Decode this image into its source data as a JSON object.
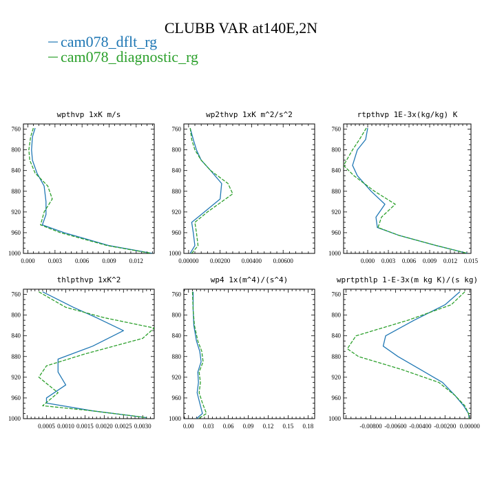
{
  "figure": {
    "title": "CLUBB VAR at140E,2N",
    "legend": [
      {
        "label": "cam078_dflt_rg",
        "color": "#1f77b4",
        "dash": "solid"
      },
      {
        "label": "cam078_diagnostic_rg",
        "color": "#2ca02c",
        "dash": "dashed"
      }
    ]
  },
  "chart_data": [
    {
      "type": "line",
      "title": "wpthvp  1xK m/s",
      "xlim": [
        -0.0005,
        0.014
      ],
      "ylim": [
        1000,
        750
      ],
      "yticks": [
        760,
        800,
        840,
        880,
        920,
        960,
        1000
      ],
      "xticks": [
        0.0,
        0.003,
        0.006,
        0.009,
        0.012
      ],
      "xticklabels": [
        "0.000",
        "0.003",
        "0.006",
        "0.009",
        "0.012"
      ],
      "ylabel": "",
      "series": [
        {
          "name": "cam078_dflt_rg",
          "x": [
            0.0008,
            0.0005,
            0.0004,
            0.0005,
            0.001,
            0.0018,
            0.002,
            0.002,
            0.0016,
            0.004,
            0.009,
            0.0138
          ],
          "y": [
            758,
            775,
            800,
            820,
            845,
            870,
            900,
            925,
            945,
            960,
            985,
            1000
          ]
        },
        {
          "name": "cam078_diagnostic_rg",
          "x": [
            0.0006,
            0.0003,
            0.0001,
            0.0002,
            0.0008,
            0.0022,
            0.0027,
            0.0018,
            0.0014,
            0.0036,
            0.0088,
            0.0137
          ],
          "y": [
            758,
            775,
            800,
            820,
            845,
            870,
            895,
            920,
            945,
            960,
            985,
            1000
          ]
        }
      ]
    },
    {
      "type": "line",
      "title": "wp2thvp  1xK m^2/s^2",
      "xlim": [
        -0.0003,
        0.008
      ],
      "ylim": [
        1000,
        750
      ],
      "yticks": [
        760,
        800,
        840,
        880,
        920,
        960,
        1000
      ],
      "xticks": [
        0.0,
        0.002,
        0.004,
        0.006
      ],
      "xticklabels": [
        "0.00000",
        "0.00200",
        "0.00400",
        "0.00600"
      ],
      "ylabel": "",
      "series": [
        {
          "name": "cam078_dflt_rg",
          "x": [
            0.0001,
            0.0003,
            0.0005,
            0.0008,
            0.0014,
            0.0021,
            0.002,
            0.0008,
            0.0002,
            0.0003,
            0.0004,
            0.0001
          ],
          "y": [
            758,
            780,
            800,
            820,
            840,
            865,
            895,
            925,
            940,
            960,
            985,
            1000
          ]
        },
        {
          "name": "cam078_diagnostic_rg",
          "x": [
            0.0001,
            0.0002,
            0.0004,
            0.0008,
            0.0014,
            0.0025,
            0.0028,
            0.0012,
            0.0004,
            0.0005,
            0.0006,
            0.0002
          ],
          "y": [
            758,
            780,
            800,
            820,
            840,
            865,
            885,
            920,
            940,
            960,
            985,
            1000
          ]
        }
      ]
    },
    {
      "type": "line",
      "title": "rtpthvp  1E-3x(kg/kg) K",
      "xlim": [
        -0.0035,
        0.015
      ],
      "ylim": [
        1000,
        750
      ],
      "yticks": [
        760,
        800,
        840,
        880,
        920,
        960,
        1000
      ],
      "xticks": [
        0.0,
        0.003,
        0.006,
        0.009,
        0.012,
        0.015
      ],
      "xticklabels": [
        "0.000",
        "0.003",
        "0.006",
        "0.009",
        "0.012",
        "0.015"
      ],
      "ylabel": "",
      "series": [
        {
          "name": "cam078_dflt_rg",
          "x": [
            0.0,
            -0.0003,
            -0.0015,
            -0.0022,
            -0.0015,
            0.0005,
            0.0025,
            0.0012,
            0.0014,
            0.0045,
            0.01,
            0.0145
          ],
          "y": [
            758,
            780,
            800,
            830,
            850,
            880,
            905,
            930,
            950,
            965,
            985,
            1000
          ]
        },
        {
          "name": "cam078_diagnostic_rg",
          "x": [
            -0.0002,
            -0.0012,
            -0.0022,
            -0.0035,
            -0.002,
            0.001,
            0.004,
            0.002,
            0.0015,
            0.0045,
            0.01,
            0.0145
          ],
          "y": [
            758,
            780,
            800,
            830,
            850,
            880,
            905,
            930,
            950,
            965,
            985,
            1000
          ]
        }
      ]
    },
    {
      "type": "line",
      "title": "thlpthvp  1xK^2",
      "xlim": [
        -0.0001,
        0.0033
      ],
      "ylim": [
        1000,
        750
      ],
      "yticks": [
        760,
        800,
        840,
        880,
        920,
        960,
        1000
      ],
      "xticks": [
        0.0005,
        0.001,
        0.0015,
        0.002,
        0.0025,
        0.003
      ],
      "xticklabels": [
        "0.0005",
        "0.0010",
        "0.0015",
        "0.0020",
        "0.0025",
        "0.0030"
      ],
      "ylabel": "",
      "series": [
        {
          "name": "cam078_dflt_rg",
          "x": [
            0.0004,
            0.0012,
            0.0018,
            0.0025,
            0.0017,
            0.0008,
            0.0008,
            0.001,
            0.0005,
            0.0005,
            0.0017,
            0.0031
          ],
          "y": [
            755,
            785,
            805,
            830,
            860,
            885,
            910,
            935,
            960,
            970,
            985,
            998
          ]
        },
        {
          "name": "cam078_diagnostic_rg",
          "x": [
            0.0003,
            0.001,
            0.002,
            0.0033,
            0.003,
            0.0015,
            0.0005,
            0.0003,
            0.0008,
            0.0004,
            0.0017,
            0.0031
          ],
          "y": [
            755,
            785,
            805,
            825,
            845,
            875,
            898,
            920,
            950,
            975,
            985,
            998
          ]
        }
      ]
    },
    {
      "type": "line",
      "title": "wp4  1x(m^4)/(s^4)",
      "xlim": [
        -0.007,
        0.19
      ],
      "ylim": [
        1000,
        750
      ],
      "yticks": [
        760,
        800,
        840,
        880,
        920,
        960,
        1000
      ],
      "xticks": [
        0.0,
        0.03,
        0.06,
        0.09,
        0.12,
        0.15,
        0.18
      ],
      "xticklabels": [
        "0.00",
        "0.03",
        "0.06",
        "0.09",
        "0.12",
        "0.15",
        "0.18"
      ],
      "ylabel": "",
      "series": [
        {
          "name": "cam078_dflt_rg",
          "x": [
            0.007,
            0.007,
            0.008,
            0.012,
            0.017,
            0.019,
            0.014,
            0.015,
            0.013,
            0.017,
            0.021,
            0.012
          ],
          "y": [
            755,
            790,
            820,
            850,
            870,
            890,
            910,
            930,
            950,
            970,
            990,
            1000
          ]
        },
        {
          "name": "cam078_diagnostic_rg",
          "x": [
            0.006,
            0.007,
            0.009,
            0.014,
            0.02,
            0.022,
            0.016,
            0.018,
            0.016,
            0.021,
            0.027,
            0.015
          ],
          "y": [
            755,
            790,
            820,
            850,
            870,
            890,
            910,
            930,
            950,
            970,
            990,
            1000
          ]
        }
      ]
    },
    {
      "type": "line",
      "title": "wprtpthlp  1-E-3x(m kg K)/(s kg)",
      "xlim": [
        -0.0102,
        0.0001
      ],
      "ylim": [
        1000,
        750
      ],
      "yticks": [
        760,
        800,
        840,
        880,
        920,
        960,
        1000
      ],
      "xticks": [
        -0.008,
        -0.006,
        -0.004,
        -0.002,
        0.0
      ],
      "xticklabels": [
        "-0.00800",
        "-0.00600",
        "-0.00400",
        "-0.00200",
        "0.00000"
      ],
      "ylabel": "",
      "series": [
        {
          "name": "cam078_dflt_rg",
          "x": [
            -0.0008,
            -0.002,
            -0.0045,
            -0.0068,
            -0.007,
            -0.0058,
            -0.004,
            -0.0022,
            -0.0012,
            -0.0005,
            -0.0001,
            -5e-05
          ],
          "y": [
            755,
            780,
            810,
            840,
            860,
            880,
            905,
            930,
            955,
            975,
            990,
            1000
          ]
        },
        {
          "name": "cam078_diagnostic_rg",
          "x": [
            -0.0004,
            -0.0015,
            -0.005,
            -0.0092,
            -0.0099,
            -0.009,
            -0.0055,
            -0.0025,
            -0.0012,
            -0.0004,
            -0.0001,
            -5e-05
          ],
          "y": [
            755,
            780,
            810,
            840,
            865,
            880,
            905,
            930,
            955,
            975,
            990,
            1000
          ]
        }
      ]
    }
  ]
}
